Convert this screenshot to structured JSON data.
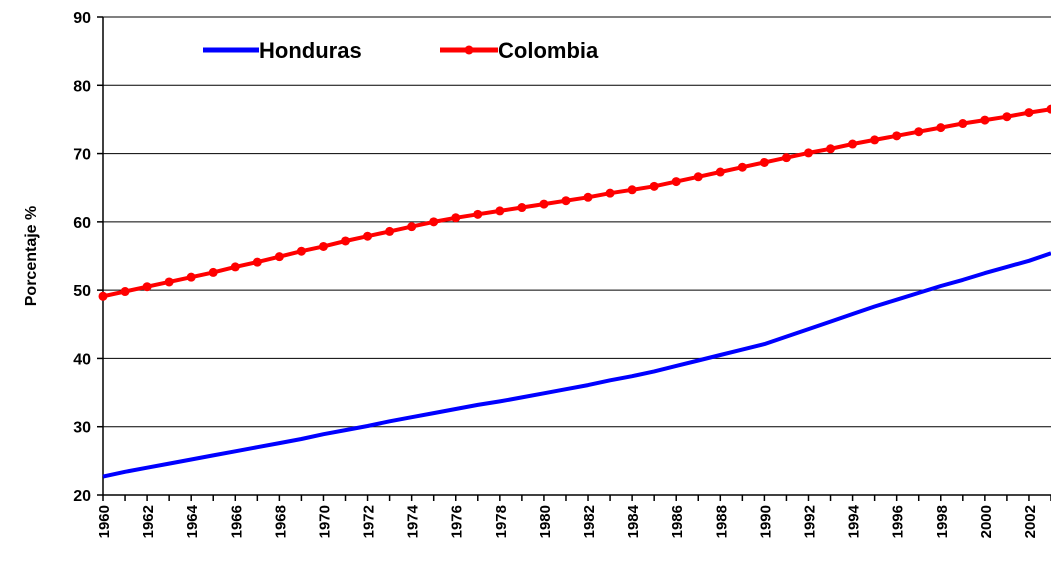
{
  "chart_data": {
    "type": "line",
    "title": "",
    "xlabel": "",
    "ylabel": "Porcentaje %",
    "ylim": [
      20,
      90
    ],
    "xlim": [
      1960,
      2003
    ],
    "grid": "horizontal",
    "legend_position": "top-left",
    "yticks": [
      "20",
      "30",
      "40",
      "50",
      "60",
      "70",
      "80",
      "90"
    ],
    "xticks": [
      "1960",
      "1962",
      "1964",
      "1966",
      "1968",
      "1970",
      "1972",
      "1974",
      "1976",
      "1978",
      "1980",
      "1982",
      "1984",
      "1986",
      "1988",
      "1990",
      "1992",
      "1994",
      "1996",
      "1998",
      "2000",
      "2002"
    ],
    "x": [
      1960,
      1961,
      1962,
      1963,
      1964,
      1965,
      1966,
      1967,
      1968,
      1969,
      1970,
      1971,
      1972,
      1973,
      1974,
      1975,
      1976,
      1977,
      1978,
      1979,
      1980,
      1981,
      1982,
      1983,
      1984,
      1985,
      1986,
      1987,
      1988,
      1989,
      1990,
      1991,
      1992,
      1993,
      1994,
      1995,
      1996,
      1997,
      1998,
      1999,
      2000,
      2001,
      2002,
      2003
    ],
    "series": [
      {
        "name": "Honduras",
        "color": "#0000ff",
        "markers": false,
        "values": [
          22.7,
          23.4,
          24.0,
          24.6,
          25.2,
          25.8,
          26.4,
          27.0,
          27.6,
          28.2,
          28.9,
          29.5,
          30.1,
          30.8,
          31.4,
          32.0,
          32.6,
          33.2,
          33.7,
          34.3,
          34.9,
          35.5,
          36.1,
          36.8,
          37.4,
          38.1,
          38.9,
          39.7,
          40.5,
          41.3,
          42.1,
          43.2,
          44.3,
          45.4,
          46.5,
          47.6,
          48.6,
          49.6,
          50.6,
          51.5,
          52.5,
          53.4,
          54.3,
          55.4
        ]
      },
      {
        "name": "Colombia",
        "color": "#ff0000",
        "markers": true,
        "values": [
          49.1,
          49.8,
          50.5,
          51.2,
          51.9,
          52.6,
          53.4,
          54.1,
          54.9,
          55.7,
          56.4,
          57.2,
          57.9,
          58.6,
          59.3,
          60.0,
          60.6,
          61.1,
          61.6,
          62.1,
          62.6,
          63.1,
          63.6,
          64.2,
          64.7,
          65.2,
          65.9,
          66.6,
          67.3,
          68.0,
          68.7,
          69.4,
          70.1,
          70.7,
          71.4,
          72.0,
          72.6,
          73.2,
          73.8,
          74.4,
          74.9,
          75.4,
          76.0,
          76.5
        ]
      }
    ]
  }
}
